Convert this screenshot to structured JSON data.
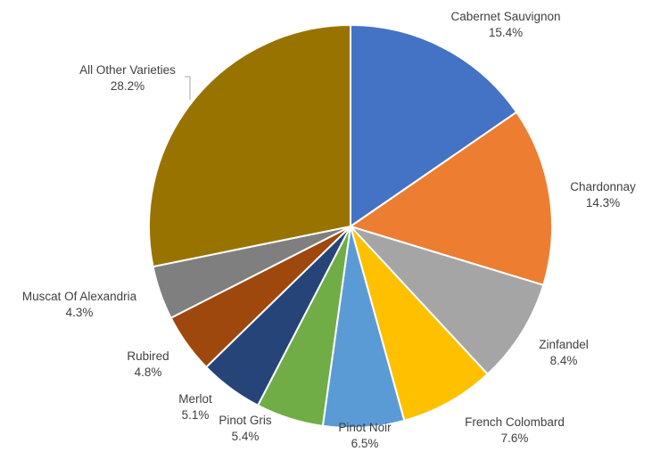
{
  "chart_data": {
    "type": "pie",
    "title": "",
    "start_angle_deg": 0,
    "direction": "clockwise",
    "slices": [
      {
        "label": "Cabernet Sauvignon",
        "value": 15.4,
        "display": "15.4%",
        "color": "#4472C4"
      },
      {
        "label": "Chardonnay",
        "value": 14.3,
        "display": "14.3%",
        "color": "#ED7D31"
      },
      {
        "label": "Zinfandel",
        "value": 8.4,
        "display": "8.4%",
        "color": "#A5A5A5"
      },
      {
        "label": "French Colombard",
        "value": 7.6,
        "display": "7.6%",
        "color": "#FFC000"
      },
      {
        "label": "Pinot Noir",
        "value": 6.5,
        "display": "6.5%",
        "color": "#5B9BD5"
      },
      {
        "label": "Pinot Gris",
        "value": 5.4,
        "display": "5.4%",
        "color": "#70AD47"
      },
      {
        "label": "Merlot",
        "value": 5.1,
        "display": "5.1%",
        "color": "#264478"
      },
      {
        "label": "Rubired",
        "value": 4.8,
        "display": "4.8%",
        "color": "#9E480E"
      },
      {
        "label": "Muscat Of Alexandria",
        "value": 4.3,
        "display": "4.3%",
        "color": "#7F7F7F"
      },
      {
        "label": "All Other Varieties",
        "value": 28.2,
        "display": "28.2%",
        "color": "#997300"
      }
    ]
  }
}
